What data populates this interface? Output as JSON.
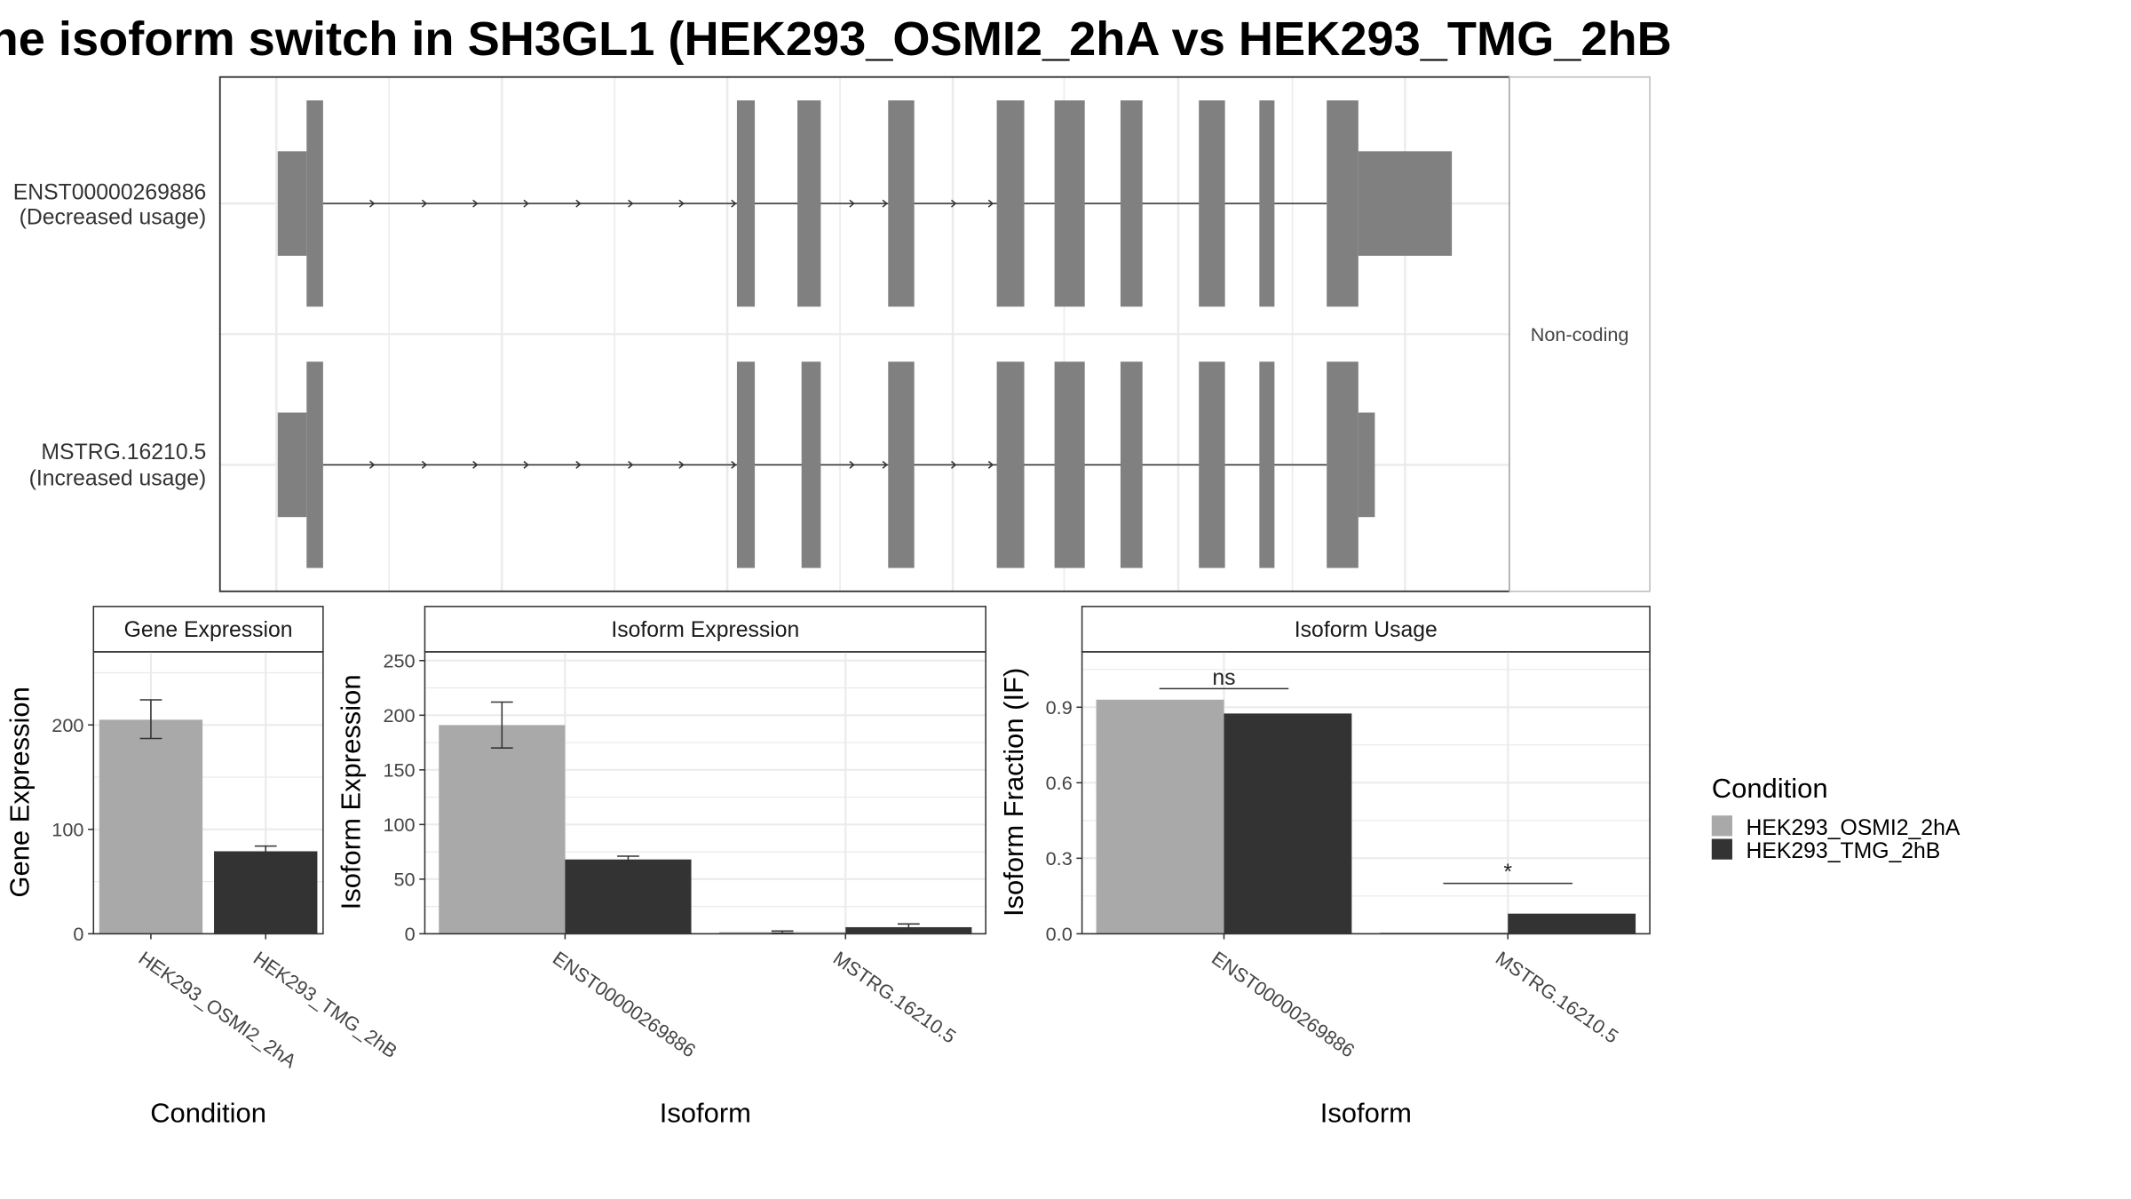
{
  "title": "he isoform switch in SH3GL1 (HEK293_OSMI2_2hA vs HEK293_TMG_2hB",
  "colors": {
    "cond_a": "#a9a9a9",
    "cond_b": "#333333",
    "exon": "#808080",
    "grid": "#ebebeb",
    "border": "#333333"
  },
  "chart_data": [
    {
      "type": "other",
      "panel": "isoform-structures",
      "isoforms": [
        {
          "id": "ENST00000269886",
          "label_line1": "ENST00000269886",
          "label_line2": "(Decreased usage)"
        },
        {
          "id": "MSTRG.16210.5",
          "label_line1": "MSTRG.16210.5",
          "label_line2": "(Increased usage)"
        }
      ],
      "facet_label": "Non-coding"
    },
    {
      "type": "bar",
      "title": "Gene Expression",
      "xlabel": "Condition",
      "ylabel": "Gene Expression",
      "ylim": [
        0,
        270
      ],
      "yticks": [
        0,
        100,
        200
      ],
      "categories": [
        "HEK293_OSMI2_2hA",
        "HEK293_TMG_2hB"
      ],
      "series": [
        {
          "name": "HEK293_OSMI2_2hA",
          "values": [
            205,
            null
          ],
          "err_low": [
            187,
            null
          ],
          "err_high": [
            224,
            null
          ]
        },
        {
          "name": "HEK293_TMG_2hB",
          "values": [
            null,
            79
          ],
          "err_low": [
            null,
            75
          ],
          "err_high": [
            null,
            84
          ]
        }
      ]
    },
    {
      "type": "bar",
      "title": "Isoform Expression",
      "xlabel": "Isoform",
      "ylabel": "Isoform Expression",
      "ylim": [
        0,
        258
      ],
      "yticks": [
        0,
        50,
        100,
        150,
        200,
        250
      ],
      "categories": [
        "ENST00000269886",
        "MSTRG.16210.5"
      ],
      "series": [
        {
          "name": "HEK293_OSMI2_2hA",
          "values": [
            191,
            1.5
          ],
          "err_low": [
            170,
            0.5
          ],
          "err_high": [
            212,
            2.5
          ]
        },
        {
          "name": "HEK293_TMG_2hB",
          "values": [
            68,
            6
          ],
          "err_low": [
            66,
            3
          ],
          "err_high": [
            71,
            9
          ]
        }
      ]
    },
    {
      "type": "bar",
      "title": "Isoform Usage",
      "xlabel": "Isoform",
      "ylabel": "Isoform Fraction (IF)",
      "ylim": [
        0,
        1.12
      ],
      "yticks": [
        "0.0",
        "0.3",
        "0.6",
        "0.9"
      ],
      "categories": [
        "ENST00000269886",
        "MSTRG.16210.5"
      ],
      "series": [
        {
          "name": "HEK293_OSMI2_2hA",
          "values": [
            0.93,
            0.005
          ]
        },
        {
          "name": "HEK293_TMG_2hB",
          "values": [
            0.875,
            0.08
          ]
        }
      ],
      "significance": [
        {
          "category": "ENST00000269886",
          "label": "ns"
        },
        {
          "category": "MSTRG.16210.5",
          "label": "*"
        }
      ]
    }
  ],
  "legend": {
    "title": "Condition",
    "items": [
      {
        "label": "HEK293_OSMI2_2hA",
        "color": "#a9a9a9"
      },
      {
        "label": "HEK293_TMG_2hB",
        "color": "#333333"
      }
    ]
  }
}
